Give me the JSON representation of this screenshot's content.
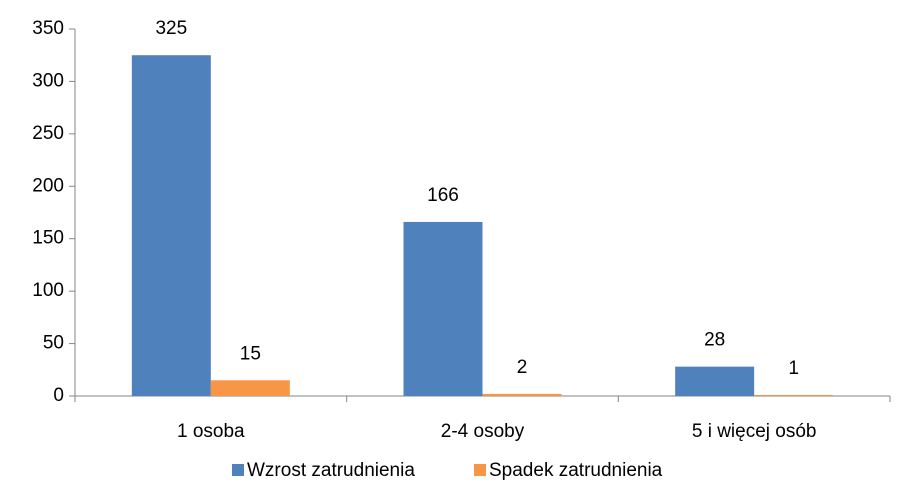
{
  "chart_data": {
    "type": "bar",
    "categories": [
      "1 osoba",
      "2-4 osoby",
      "5 i więcej osób"
    ],
    "series": [
      {
        "name": "Wzrost zatrudnienia",
        "color": "#4f81bd",
        "values": [
          325,
          166,
          28
        ]
      },
      {
        "name": "Spadek zatrudnienia",
        "color": "#f79646",
        "values": [
          15,
          2,
          1
        ]
      }
    ],
    "ylim": [
      0,
      350
    ],
    "yticks": [
      0,
      50,
      100,
      150,
      200,
      250,
      300,
      350
    ],
    "grid": false,
    "legend": "bottom"
  }
}
